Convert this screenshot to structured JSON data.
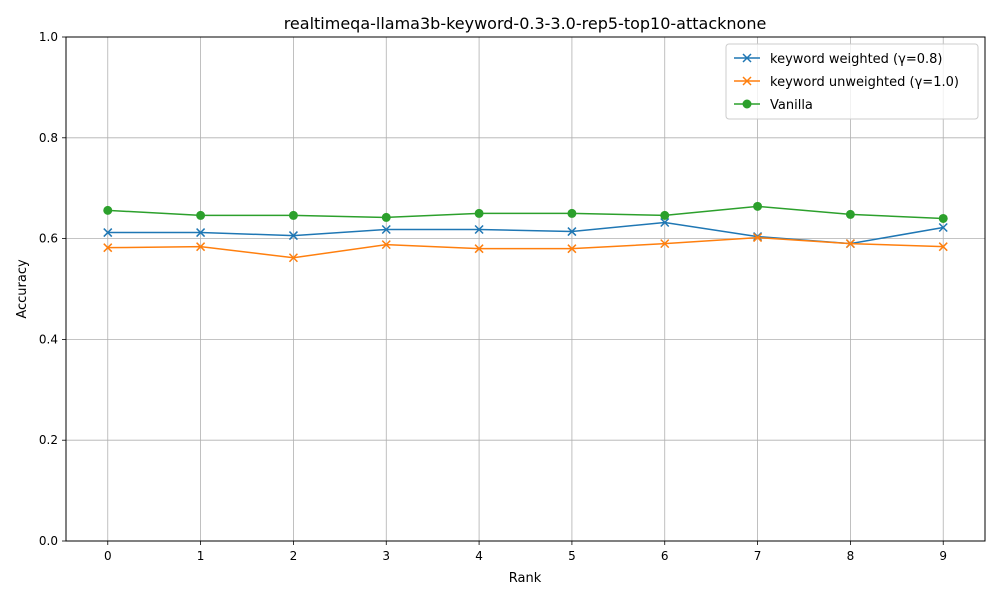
{
  "chart_data": {
    "type": "line",
    "title": "realtimeqa-llama3b-keyword-0.3-3.0-rep5-top10-attacknone",
    "xlabel": "Rank",
    "ylabel": "Accuracy",
    "x": [
      0,
      1,
      2,
      3,
      4,
      5,
      6,
      7,
      8,
      9
    ],
    "xticks": [
      "0",
      "1",
      "2",
      "3",
      "4",
      "5",
      "6",
      "7",
      "8",
      "9"
    ],
    "xlim": [
      -0.45,
      9.45
    ],
    "ylim": [
      0.0,
      1.0
    ],
    "yticks": [
      "0.0",
      "0.2",
      "0.4",
      "0.6",
      "0.8",
      "1.0"
    ],
    "grid": true,
    "legend_position": "top-right",
    "series": [
      {
        "name": "keyword weighted (γ=0.8)",
        "color": "#1f77b4",
        "marker": "x",
        "values": [
          0.612,
          0.612,
          0.606,
          0.618,
          0.618,
          0.614,
          0.632,
          0.604,
          0.59,
          0.622
        ]
      },
      {
        "name": "keyword unweighted (γ=1.0)",
        "color": "#ff7f0e",
        "marker": "x",
        "values": [
          0.582,
          0.584,
          0.562,
          0.588,
          0.58,
          0.58,
          0.59,
          0.602,
          0.59,
          0.584
        ]
      },
      {
        "name": "Vanilla",
        "color": "#2ca02c",
        "marker": "o",
        "values": [
          0.656,
          0.646,
          0.646,
          0.642,
          0.65,
          0.65,
          0.646,
          0.664,
          0.648,
          0.64
        ]
      }
    ]
  }
}
